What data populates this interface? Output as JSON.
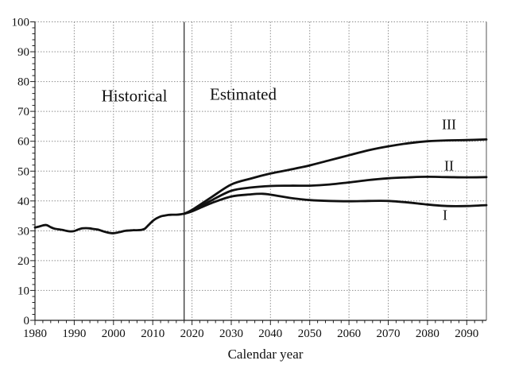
{
  "chart_data": {
    "type": "line",
    "title": "",
    "xlabel": "Calendar year",
    "ylabel": "",
    "xlim": [
      1980,
      2095
    ],
    "ylim": [
      0,
      100
    ],
    "x_ticks": [
      1980,
      1990,
      2000,
      2010,
      2020,
      2030,
      2040,
      2050,
      2060,
      2070,
      2080,
      2090
    ],
    "y_ticks": [
      0,
      10,
      20,
      30,
      40,
      50,
      60,
      70,
      80,
      90,
      100
    ],
    "x_minor_step": 2,
    "y_minor_step": 2,
    "grid": "dotted gridlines at every major tick",
    "legend_position": "inline-annotations",
    "boundary_year": 2018,
    "colors": {
      "curve": "#111111",
      "grid": "#8f8f8f",
      "axis": "#222222",
      "right_border": "#555555",
      "divider": "#222222"
    },
    "annotations": [
      {
        "id": "historical-label",
        "text": "Historical",
        "year": 2005.3,
        "value": 75.0,
        "font_px": 21
      },
      {
        "id": "estimated-label",
        "text": "Estimated",
        "year": 2033.0,
        "value": 75.5,
        "font_px": 21
      },
      {
        "id": "series-label-3",
        "text": "III",
        "year": 2085.5,
        "value": 65.5,
        "font_px": 18
      },
      {
        "id": "series-label-2",
        "text": "II",
        "year": 2085.5,
        "value": 51.7,
        "font_px": 18
      },
      {
        "id": "series-label-1",
        "text": "I",
        "year": 2084.5,
        "value": 35.2,
        "font_px": 18
      }
    ],
    "series": [
      {
        "name": "Historical",
        "x": [
          1980,
          1981,
          1982,
          1983,
          1984,
          1985,
          1986,
          1987,
          1988,
          1989,
          1990,
          1991,
          1992,
          1993,
          1994,
          1995,
          1996,
          1997,
          1998,
          1999,
          2000,
          2001,
          2002,
          2003,
          2004,
          2005,
          2006,
          2007,
          2008,
          2009,
          2010,
          2011,
          2012,
          2013,
          2014,
          2015,
          2016,
          2017,
          2018
        ],
        "y": [
          31.1,
          31.4,
          31.8,
          31.9,
          31.2,
          30.7,
          30.5,
          30.3,
          30.0,
          29.8,
          29.9,
          30.4,
          30.8,
          30.9,
          30.8,
          30.6,
          30.4,
          30.0,
          29.6,
          29.3,
          29.2,
          29.4,
          29.7,
          30.0,
          30.1,
          30.2,
          30.2,
          30.3,
          30.7,
          32.0,
          33.3,
          34.2,
          34.8,
          35.1,
          35.3,
          35.4,
          35.4,
          35.5,
          35.7
        ]
      },
      {
        "name": "I",
        "x": [
          2018,
          2020,
          2025,
          2030,
          2035,
          2038,
          2040,
          2045,
          2050,
          2055,
          2060,
          2065,
          2070,
          2075,
          2080,
          2085,
          2090,
          2095
        ],
        "y": [
          35.7,
          36.5,
          39.3,
          41.5,
          42.2,
          42.4,
          42.1,
          41.0,
          40.3,
          40.0,
          39.9,
          40.0,
          40.0,
          39.5,
          38.8,
          38.3,
          38.3,
          38.6
        ]
      },
      {
        "name": "II",
        "x": [
          2018,
          2020,
          2025,
          2030,
          2035,
          2040,
          2045,
          2050,
          2055,
          2060,
          2065,
          2070,
          2075,
          2080,
          2085,
          2090,
          2095
        ],
        "y": [
          35.7,
          36.7,
          40.2,
          43.4,
          44.5,
          45.0,
          45.1,
          45.1,
          45.5,
          46.2,
          47.0,
          47.6,
          47.9,
          48.1,
          48.0,
          47.9,
          48.0
        ]
      },
      {
        "name": "III",
        "x": [
          2018,
          2020,
          2025,
          2030,
          2035,
          2040,
          2045,
          2050,
          2055,
          2060,
          2065,
          2070,
          2075,
          2080,
          2085,
          2090,
          2095
        ],
        "y": [
          35.7,
          37.0,
          41.3,
          45.5,
          47.5,
          49.2,
          50.5,
          51.9,
          53.6,
          55.3,
          57.0,
          58.3,
          59.3,
          60.0,
          60.3,
          60.4,
          60.6
        ]
      }
    ]
  }
}
